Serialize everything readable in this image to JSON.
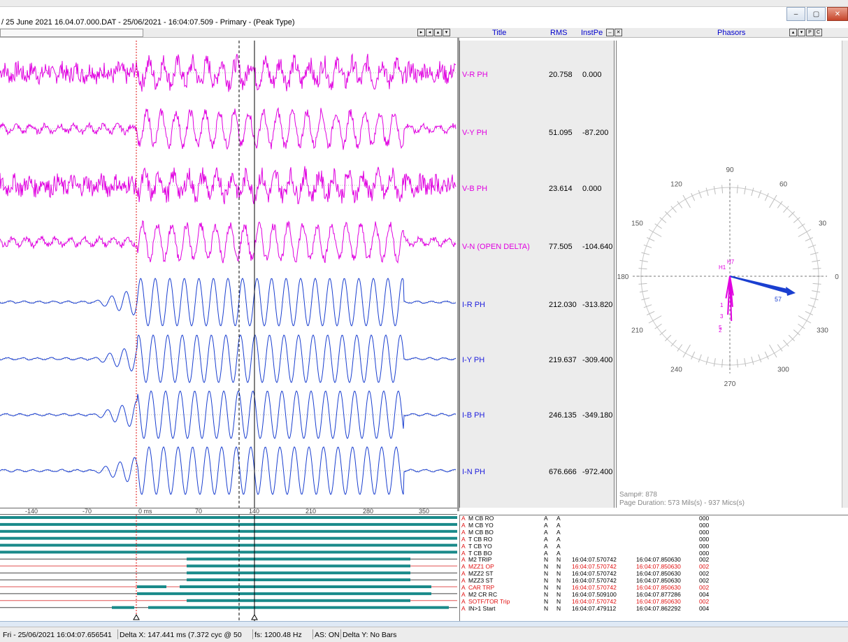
{
  "window": {
    "title": "/ 25 June 2021 16.04.07.000.DAT - 25/06/2021 - 16:04:07.509 - Primary - (Peak Type)",
    "buttons": {
      "minimize": "–",
      "maximize": "▢",
      "close": "✕"
    }
  },
  "headers": {
    "title": "Title",
    "rms": "RMS",
    "instpe": "InstPe",
    "phasors": "Phasors",
    "phasor_btn_p": "P",
    "phasor_btn_c": "C"
  },
  "channels": [
    {
      "name": "V-R PH",
      "rms": "20.758",
      "inst": "0.000",
      "kind": "v"
    },
    {
      "name": "V-Y PH",
      "rms": "51.095",
      "inst": "-87.200",
      "kind": "v"
    },
    {
      "name": "V-B PH",
      "rms": "23.614",
      "inst": "0.000",
      "kind": "v"
    },
    {
      "name": "V-N (OPEN DELTA)",
      "rms": "77.505",
      "inst": "-104.640",
      "kind": "v"
    },
    {
      "name": "I-R PH",
      "rms": "212.030",
      "inst": "-313.820",
      "kind": "i"
    },
    {
      "name": "I-Y PH",
      "rms": "219.637",
      "inst": "-309.400",
      "kind": "i"
    },
    {
      "name": "I-B PH",
      "rms": "246.135",
      "inst": "-349.180",
      "kind": "i"
    },
    {
      "name": "I-N PH",
      "rms": "676.666",
      "inst": "-972.400",
      "kind": "i"
    }
  ],
  "phasor": {
    "angle_labels": [
      "90",
      "60",
      "30",
      "0",
      "330",
      "300",
      "270",
      "240",
      "210",
      "180",
      "150",
      "120"
    ],
    "samp": "Samp#: 878",
    "page_duration": "Page Duration: 573 Mils(s) - 937 Mics(s)",
    "colors": {
      "current": "#1a3fd0",
      "voltage": "#e000e0"
    },
    "marker_labels": {
      "current": "57",
      "h_top": "H7",
      "h_left": "H1",
      "v_1": "1",
      "v_3": "3",
      "v_5": "5",
      "v_2": "2"
    }
  },
  "time_axis": {
    "ticks": [
      "-140",
      "-70",
      "0 ms",
      "70",
      "140",
      "210",
      "280",
      "350"
    ]
  },
  "digitals": [
    {
      "flag": "A",
      "name": "M CB  RO",
      "c1": "A",
      "c2": "A",
      "t1": "",
      "t2": "",
      "count": "000",
      "red": false
    },
    {
      "flag": "A",
      "name": "M CB  YO",
      "c1": "A",
      "c2": "A",
      "t1": "",
      "t2": "",
      "count": "000",
      "red": false
    },
    {
      "flag": "A",
      "name": "M CB  BO",
      "c1": "A",
      "c2": "A",
      "t1": "",
      "t2": "",
      "count": "000",
      "red": false
    },
    {
      "flag": "A",
      "name": "T CB  RO",
      "c1": "A",
      "c2": "A",
      "t1": "",
      "t2": "",
      "count": "000",
      "red": false
    },
    {
      "flag": "A",
      "name": "T CB  YO",
      "c1": "A",
      "c2": "A",
      "t1": "",
      "t2": "",
      "count": "000",
      "red": false
    },
    {
      "flag": "A",
      "name": "T CB  BO",
      "c1": "A",
      "c2": "A",
      "t1": "",
      "t2": "",
      "count": "000",
      "red": false
    },
    {
      "flag": "A",
      "name": "M2  TRIP",
      "c1": "N",
      "c2": "N",
      "t1": "16:04:07.570742",
      "t2": "16:04:07.850630",
      "count": "002",
      "red": false
    },
    {
      "flag": "A",
      "name": "MZZ1  OP",
      "c1": "N",
      "c2": "N",
      "t1": "16:04:07.570742",
      "t2": "16:04:07.850630",
      "count": "002",
      "red": true
    },
    {
      "flag": "A",
      "name": "MZZ2  ST",
      "c1": "N",
      "c2": "N",
      "t1": "16:04:07.570742",
      "t2": "16:04:07.850630",
      "count": "002",
      "red": false
    },
    {
      "flag": "A",
      "name": "MZZ3  ST",
      "c1": "N",
      "c2": "N",
      "t1": "16:04:07.570742",
      "t2": "16:04:07.850630",
      "count": "002",
      "red": false
    },
    {
      "flag": "A",
      "name": "CAR  TRP",
      "c1": "N",
      "c2": "N",
      "t1": "16:04:07.570742",
      "t2": "16:04:07.850630",
      "count": "002",
      "red": true
    },
    {
      "flag": "A",
      "name": "M2  CR  RC",
      "c1": "N",
      "c2": "N",
      "t1": "16:04:07.509100",
      "t2": "16:04:07.877286",
      "count": "004",
      "red": false
    },
    {
      "flag": "A",
      "name": "SOTF/TOR Trip",
      "c1": "N",
      "c2": "N",
      "t1": "16:04:07.570742",
      "t2": "16:04:07.850630",
      "count": "002",
      "red": true
    },
    {
      "flag": "A",
      "name": "IN>1 Start",
      "c1": "N",
      "c2": "N",
      "t1": "16:04:07.479112",
      "t2": "16:04:07.862292",
      "count": "004",
      "red": false
    }
  ],
  "status": {
    "datetime": "Fri - 25/06/2021 16:04:07.656541",
    "delta_x": "Delta X: 147.441 ms  (7.372 cyc @ 50",
    "fs": "fs:  1200.48 Hz",
    "as": "AS: ON",
    "delta_y": "Delta Y:  No Bars"
  },
  "colors": {
    "voltage": "#e000e0",
    "current": "#1a3fd0",
    "digital_bar": "#1a8a8a",
    "cursor_red": "#e01010"
  }
}
